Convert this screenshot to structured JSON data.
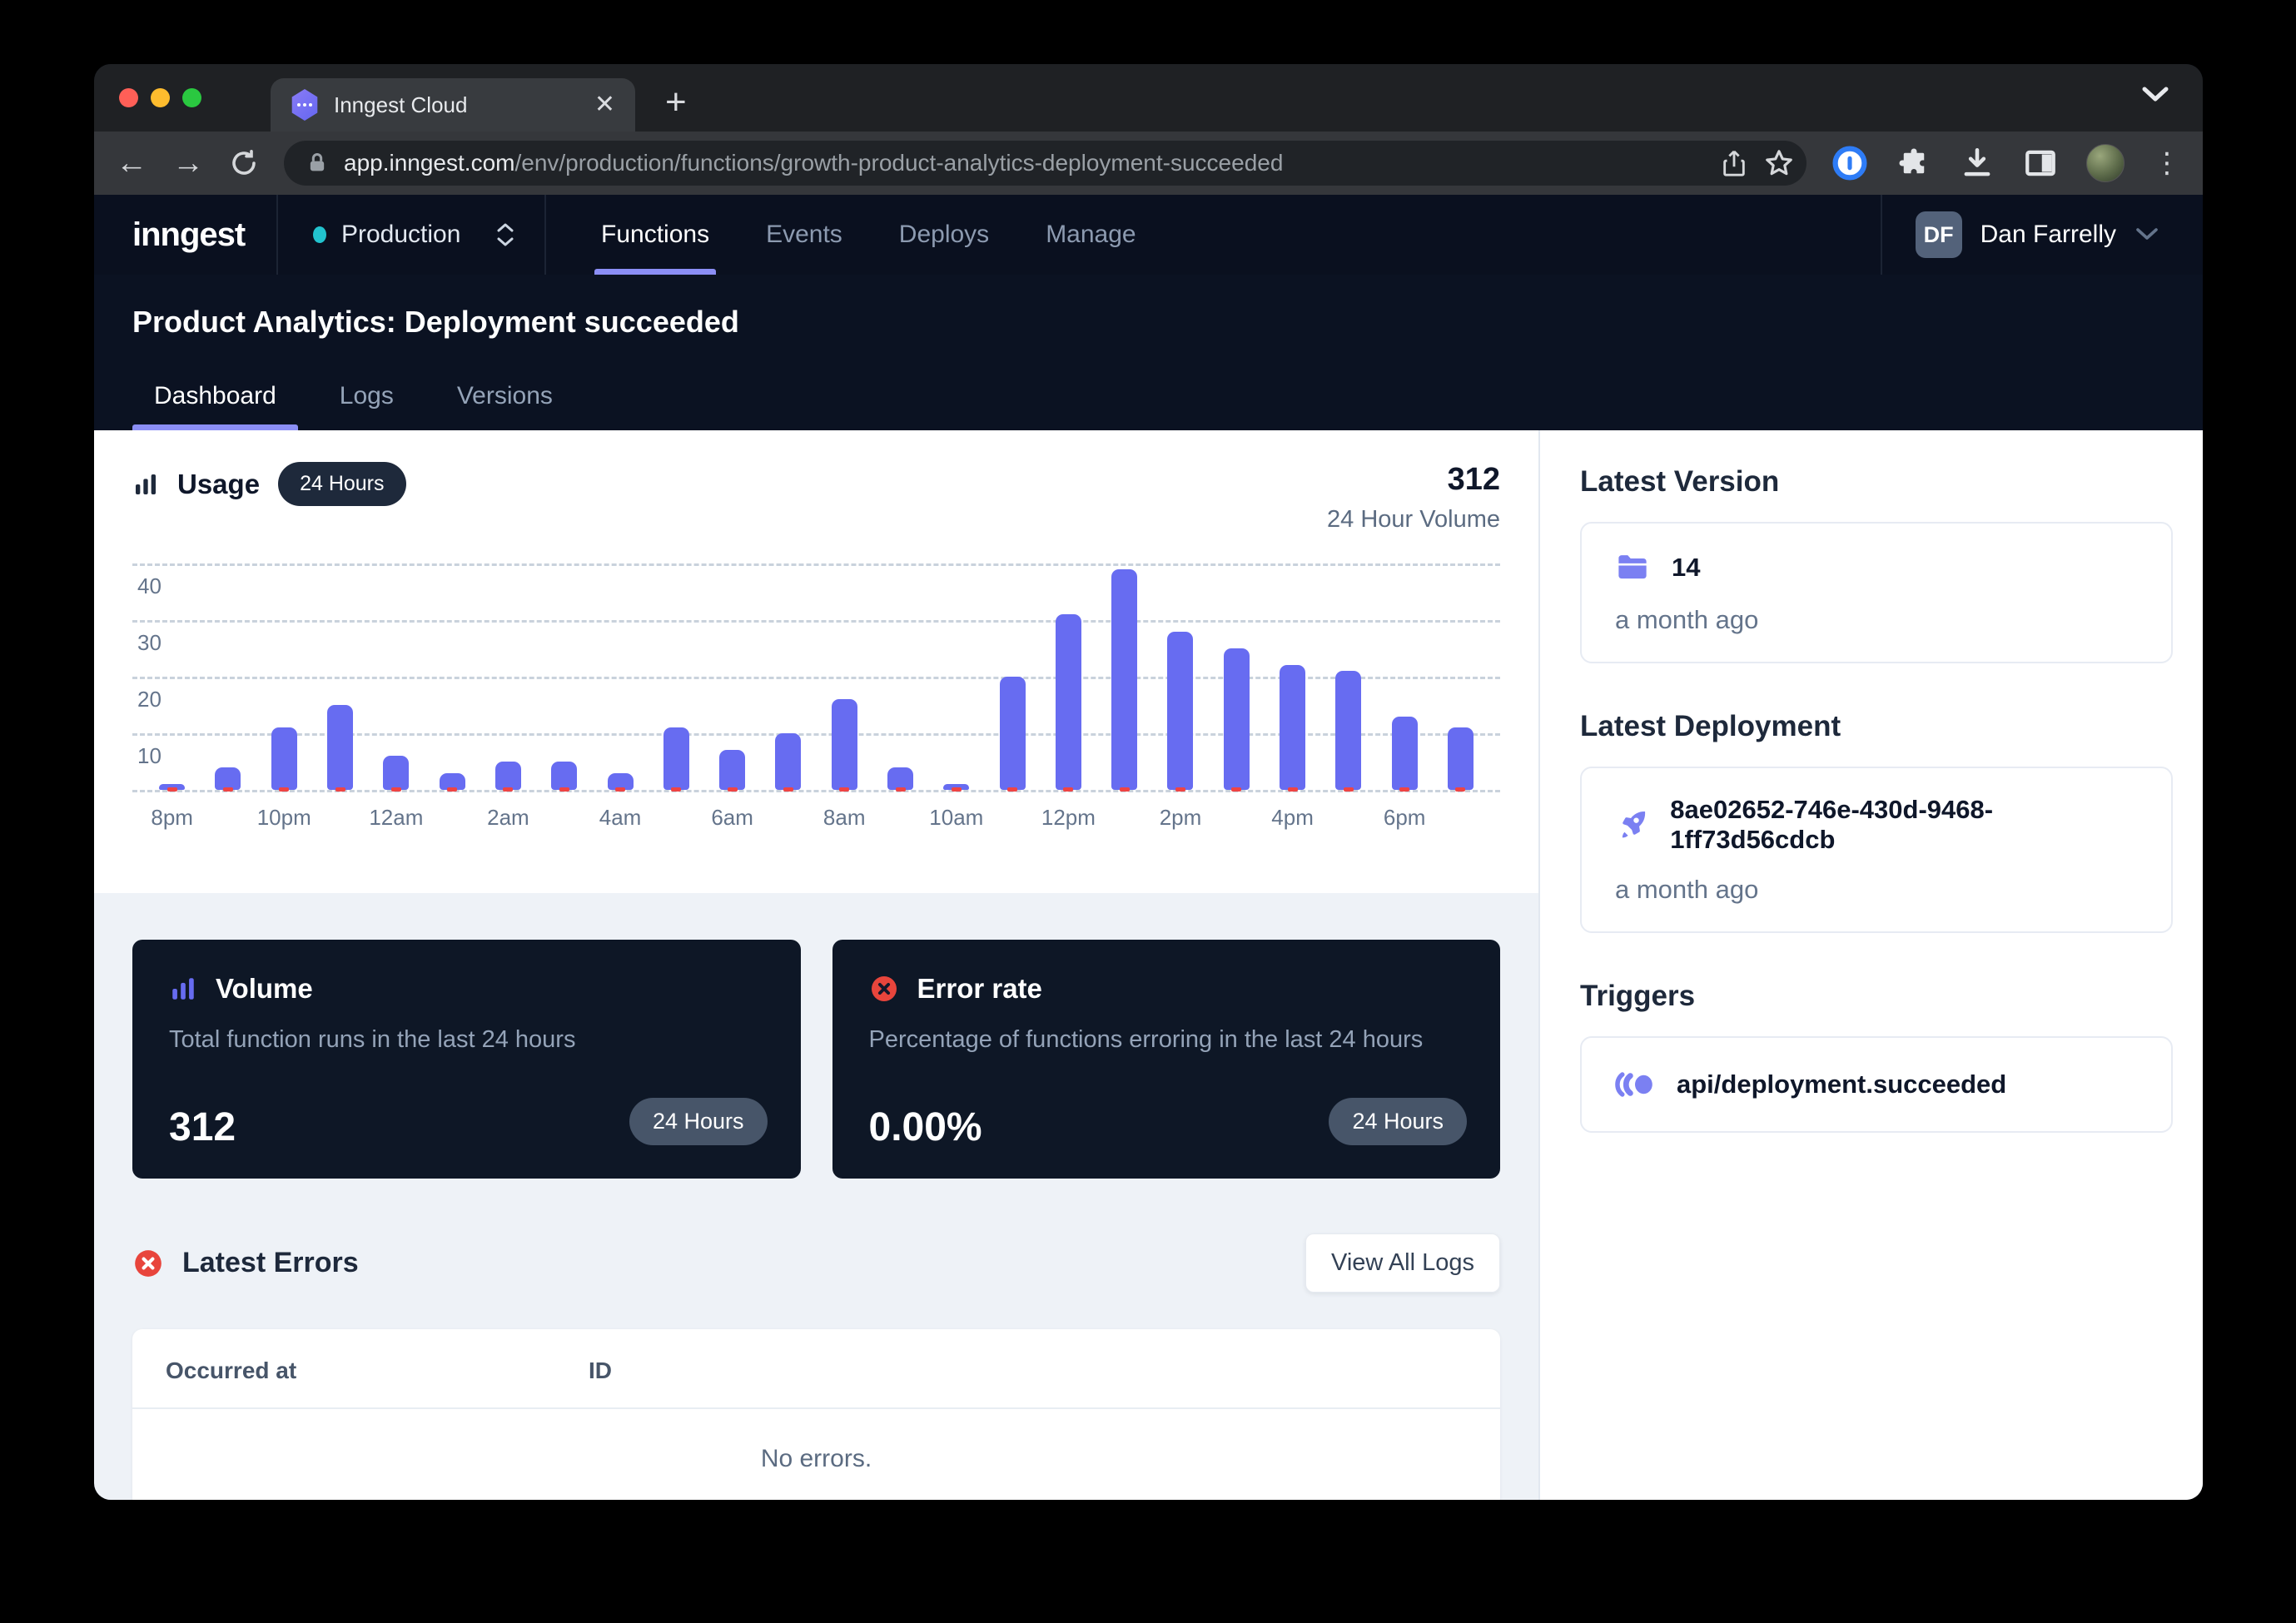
{
  "browser": {
    "tab_title": "Inngest Cloud",
    "url_domain": "app.inngest.com",
    "url_path": "/env/production/functions/growth-product-analytics-deployment-succeeded"
  },
  "nav": {
    "logo": "inngest",
    "environment": "Production",
    "items": [
      "Functions",
      "Events",
      "Deploys",
      "Manage"
    ],
    "active_item": "Functions",
    "user": {
      "initials": "DF",
      "name": "Dan Farrelly"
    }
  },
  "page": {
    "title": "Product Analytics: Deployment succeeded",
    "tabs": [
      "Dashboard",
      "Logs",
      "Versions"
    ],
    "active_tab": "Dashboard"
  },
  "usage": {
    "title": "Usage",
    "range_badge": "24 Hours",
    "total": "312",
    "total_label": "24 Hour Volume"
  },
  "chart_data": {
    "type": "bar",
    "title": "Usage — 24 Hour Volume",
    "categories": [
      "8pm",
      "9pm",
      "10pm",
      "11pm",
      "12am",
      "1am",
      "2am",
      "3am",
      "4am",
      "5am",
      "6am",
      "7am",
      "8am",
      "9am",
      "10am",
      "11am",
      "12pm",
      "1pm",
      "2pm",
      "3pm",
      "4pm",
      "5pm",
      "6pm",
      "7pm"
    ],
    "values": [
      1,
      4,
      11,
      15,
      6,
      3,
      5,
      5,
      3,
      11,
      7,
      10,
      16,
      4,
      1,
      20,
      31,
      39,
      28,
      25,
      22,
      21,
      13,
      11
    ],
    "total": 312,
    "yticks": [
      40,
      30,
      20,
      10
    ],
    "ylim": [
      0,
      41
    ],
    "xlabel_every": 2,
    "grid": "dashed horizontal",
    "bar_color": "#676cf1",
    "error_marker_color": "#ef4444"
  },
  "cards": {
    "volume": {
      "title": "Volume",
      "description": "Total function runs in the last 24 hours",
      "value": "312",
      "badge": "24 Hours"
    },
    "error_rate": {
      "title": "Error rate",
      "description": "Percentage of functions erroring in the last 24 hours",
      "value": "0.00%",
      "badge": "24 Hours"
    }
  },
  "latest_errors": {
    "title": "Latest Errors",
    "view_all_label": "View All Logs",
    "columns": [
      "Occurred at",
      "ID"
    ],
    "empty_message": "No errors."
  },
  "sidebar": {
    "latest_version": {
      "heading": "Latest Version",
      "value": "14",
      "time": "a month ago"
    },
    "latest_deployment": {
      "heading": "Latest Deployment",
      "value": "8ae02652-746e-430d-9468-1ff73d56cdcb",
      "time": "a month ago"
    },
    "triggers": {
      "heading": "Triggers",
      "value": "api/deployment.succeeded"
    }
  },
  "colors": {
    "accent_indigo": "#676cf1",
    "underline_indigo": "#8b8ef5",
    "dark_navy": "#0b1222",
    "card_navy": "#0e1726",
    "status_red": "#ef4444",
    "production_teal": "#22c3ce",
    "light_background": "#eef2f7"
  }
}
